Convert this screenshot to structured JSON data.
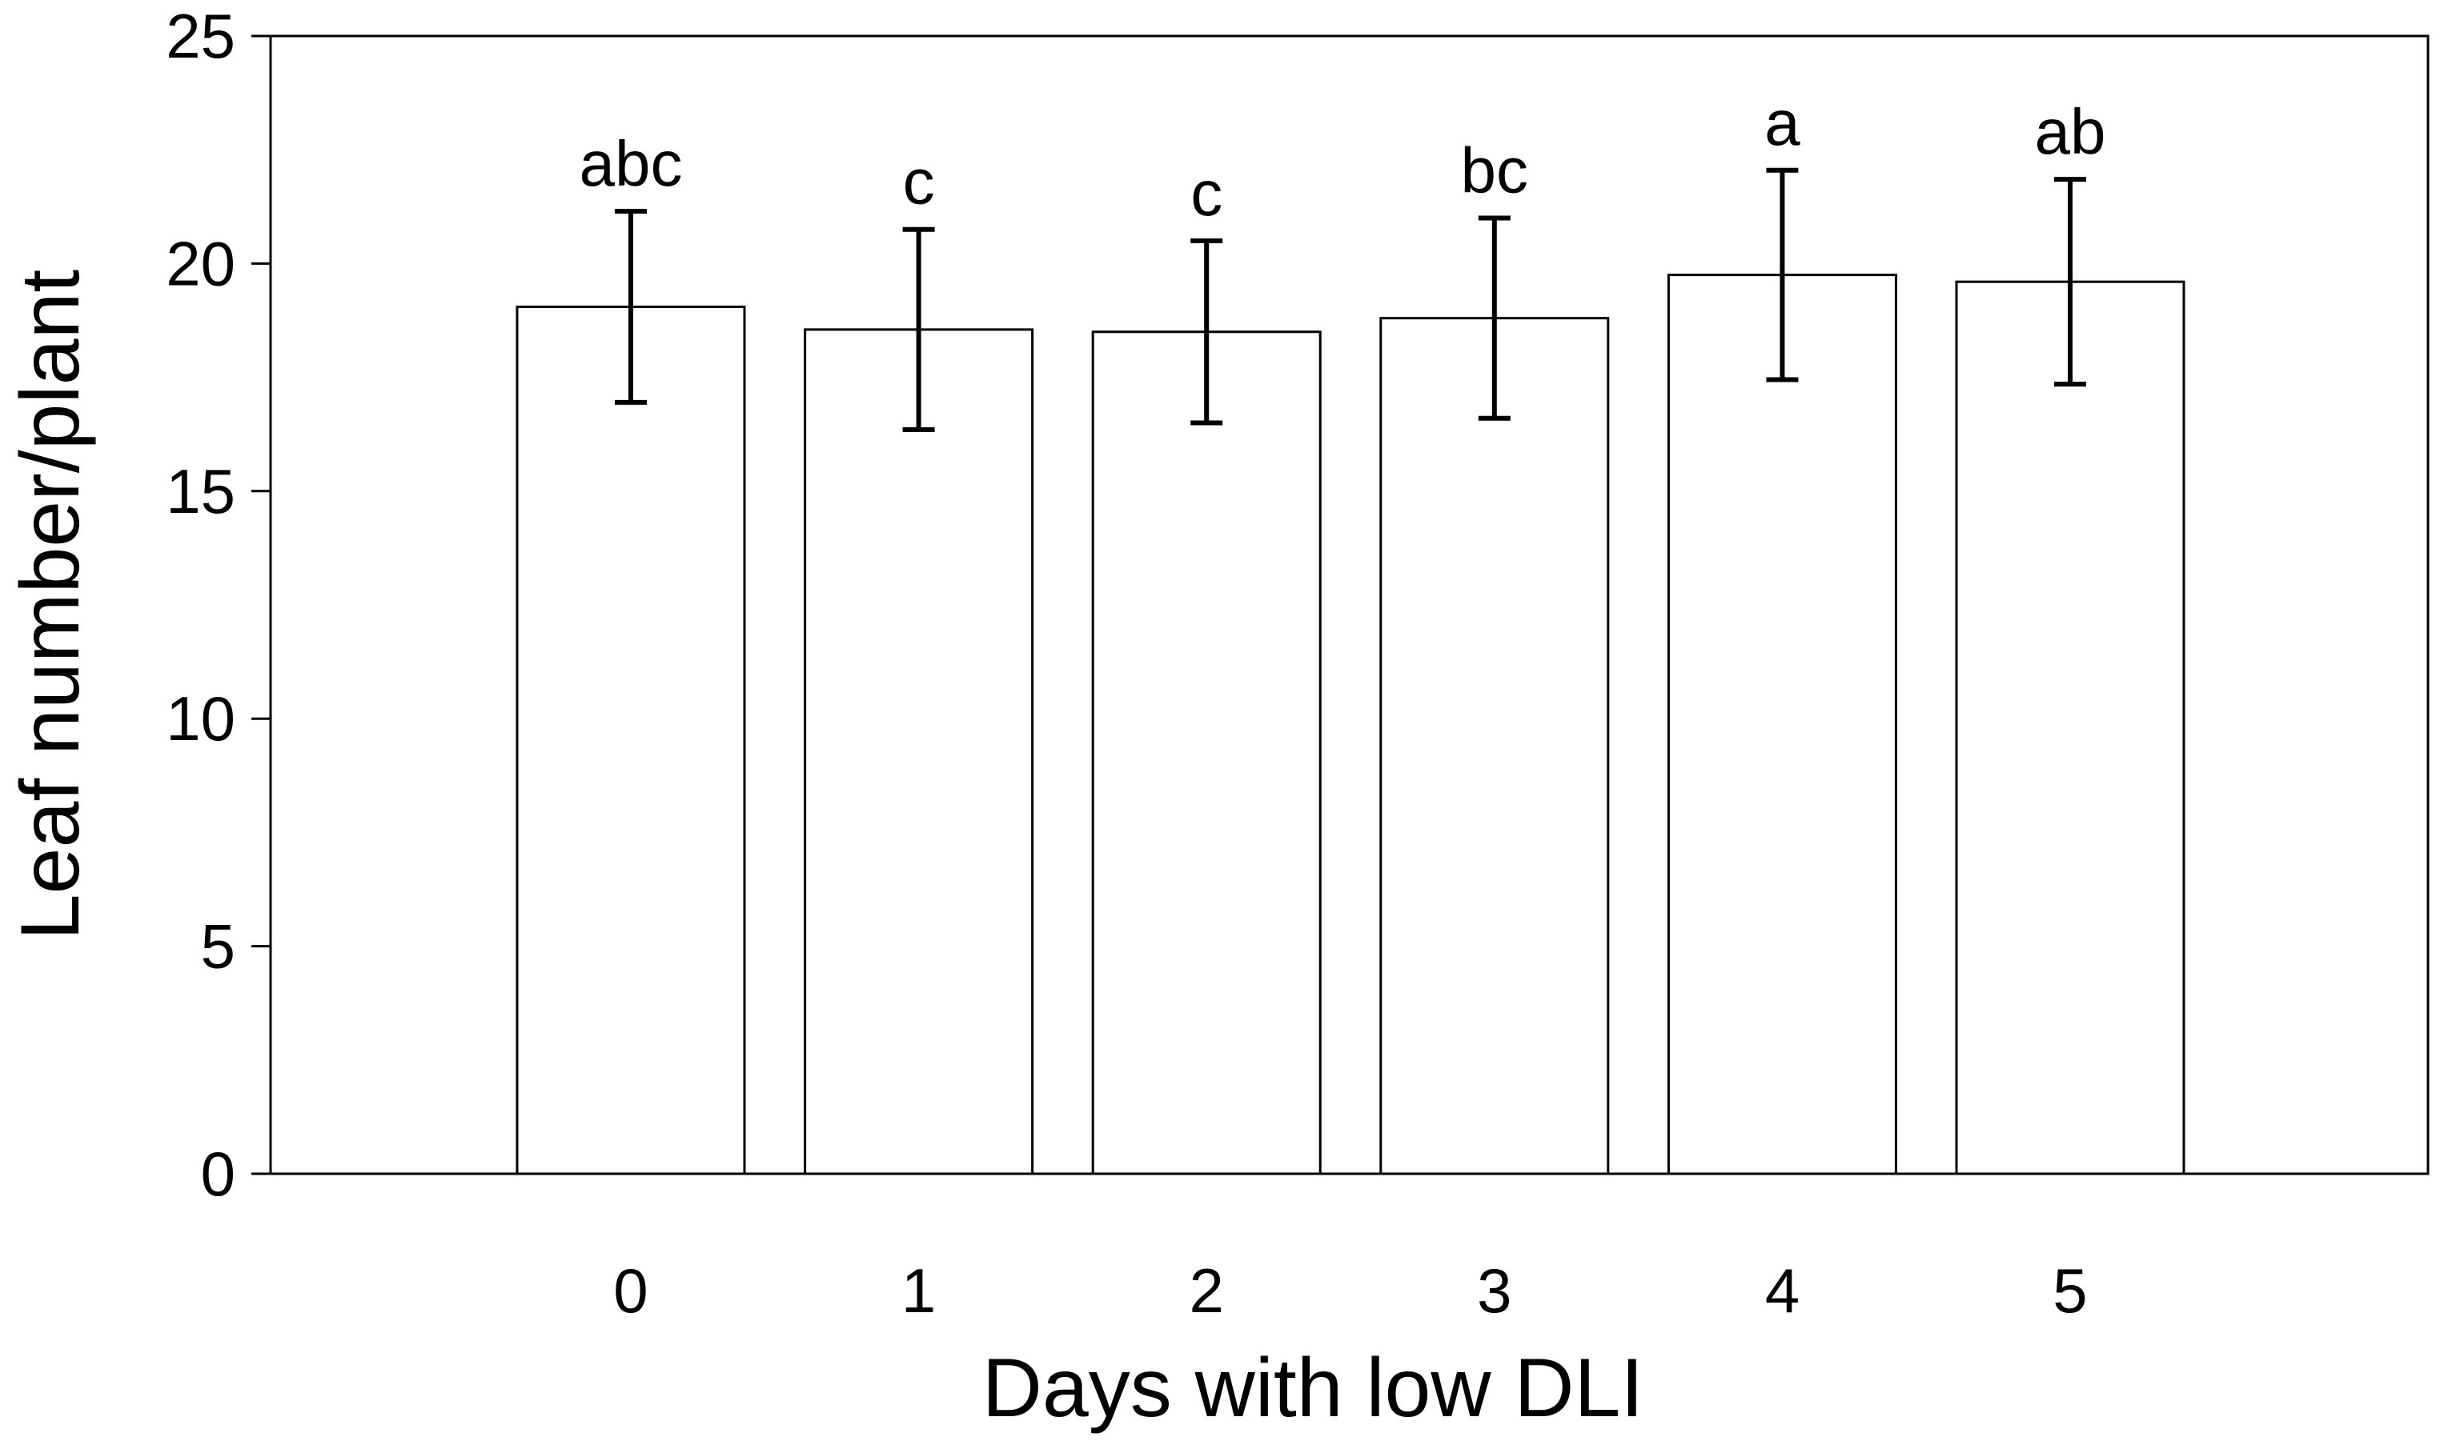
{
  "chart_data": {
    "type": "bar",
    "title": "",
    "xlabel": "Days with low DLI",
    "ylabel": "Leaf number/plant",
    "categories": [
      "0",
      "1",
      "2",
      "3",
      "4",
      "5"
    ],
    "values": [
      19.05,
      18.55,
      18.5,
      18.8,
      19.75,
      19.6
    ],
    "errors": [
      2.1,
      2.2,
      2.0,
      2.2,
      2.3,
      2.25
    ],
    "significance_letters": [
      "abc",
      "c",
      "c",
      "bc",
      "a",
      "ab"
    ],
    "ylim": [
      0,
      25
    ],
    "yticks": [
      "0",
      "5",
      "10",
      "15",
      "20",
      "25"
    ],
    "grid": false,
    "bar_color": "#ffffff",
    "edge_color": "#000000"
  }
}
